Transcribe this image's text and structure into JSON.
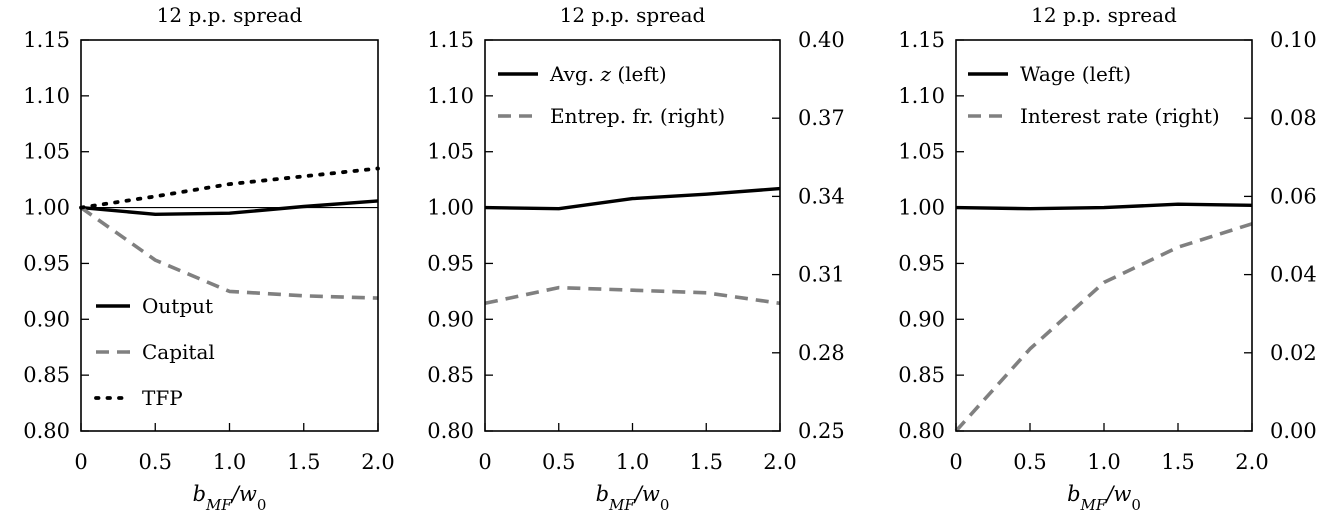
{
  "colors": {
    "black": "#000000",
    "gray": "#808080",
    "ref_line": "#000000"
  },
  "chart_data": [
    {
      "type": "line",
      "title": "12 p.p. spread",
      "xlabel": "b_MF/w_0",
      "x": [
        0,
        0.5,
        1.0,
        1.5,
        2.0
      ],
      "xticks": [
        "0",
        "0.5",
        "1.0",
        "1.5",
        "2.0"
      ],
      "xlim": [
        0,
        2.0
      ],
      "ylim": [
        0.8,
        1.15
      ],
      "yticks": [
        "0.80",
        "0.85",
        "0.90",
        "0.95",
        "1.00",
        "1.05",
        "1.10",
        "1.15"
      ],
      "reference_line": 1.0,
      "legend_position": "bottom-left",
      "series": [
        {
          "name": "Output",
          "axis": "left",
          "style": "solid",
          "color": "#000000",
          "values": [
            1.0,
            0.994,
            0.995,
            1.001,
            1.006
          ]
        },
        {
          "name": "Capital",
          "axis": "left",
          "style": "dashed",
          "color": "#808080",
          "values": [
            1.0,
            0.953,
            0.925,
            0.921,
            0.919
          ]
        },
        {
          "name": "TFP",
          "axis": "left",
          "style": "dotted",
          "color": "#000000",
          "values": [
            1.0,
            1.01,
            1.021,
            1.028,
            1.035
          ]
        }
      ]
    },
    {
      "type": "line",
      "title": "12 p.p. spread",
      "xlabel": "b_MF/w_0",
      "x": [
        0,
        0.5,
        1.0,
        1.5,
        2.0
      ],
      "xticks": [
        "0",
        "0.5",
        "1.0",
        "1.5",
        "2.0"
      ],
      "xlim": [
        0,
        2.0
      ],
      "ylim": [
        0.8,
        1.15
      ],
      "yticks": [
        "0.80",
        "0.85",
        "0.90",
        "0.95",
        "1.00",
        "1.05",
        "1.10",
        "1.15"
      ],
      "ylim_right": [
        0.25,
        0.4
      ],
      "yticks_right": [
        "0.25",
        "0.28",
        "0.31",
        "0.34",
        "0.37",
        "0.40"
      ],
      "legend_position": "top-left",
      "series": [
        {
          "name": "Avg. z (left)",
          "axis": "left",
          "style": "solid",
          "color": "#000000",
          "values": [
            1.0,
            0.999,
            1.008,
            1.012,
            1.017
          ]
        },
        {
          "name": "Entrep. fr. (right)",
          "axis": "right",
          "style": "dashed",
          "color": "#808080",
          "values": [
            0.299,
            0.305,
            0.304,
            0.303,
            0.299
          ]
        }
      ]
    },
    {
      "type": "line",
      "title": "12 p.p. spread",
      "xlabel": "b_MF/w_0",
      "x": [
        0,
        0.5,
        1.0,
        1.5,
        2.0
      ],
      "xticks": [
        "0",
        "0.5",
        "1.0",
        "1.5",
        "2.0"
      ],
      "xlim": [
        0,
        2.0
      ],
      "ylim": [
        0.8,
        1.15
      ],
      "yticks": [
        "0.80",
        "0.85",
        "0.90",
        "0.95",
        "1.00",
        "1.05",
        "1.10",
        "1.15"
      ],
      "ylim_right": [
        0.0,
        0.1
      ],
      "yticks_right": [
        "0.00",
        "0.02",
        "0.04",
        "0.06",
        "0.08",
        "0.10"
      ],
      "legend_position": "top-left",
      "series": [
        {
          "name": "Wage (left)",
          "axis": "left",
          "style": "solid",
          "color": "#000000",
          "values": [
            1.0,
            0.999,
            1.0,
            1.003,
            1.002
          ]
        },
        {
          "name": "Interest rate (right)",
          "axis": "right",
          "style": "dashed",
          "color": "#808080",
          "values": [
            0.0,
            0.021,
            0.038,
            0.047,
            0.053
          ]
        }
      ]
    }
  ]
}
